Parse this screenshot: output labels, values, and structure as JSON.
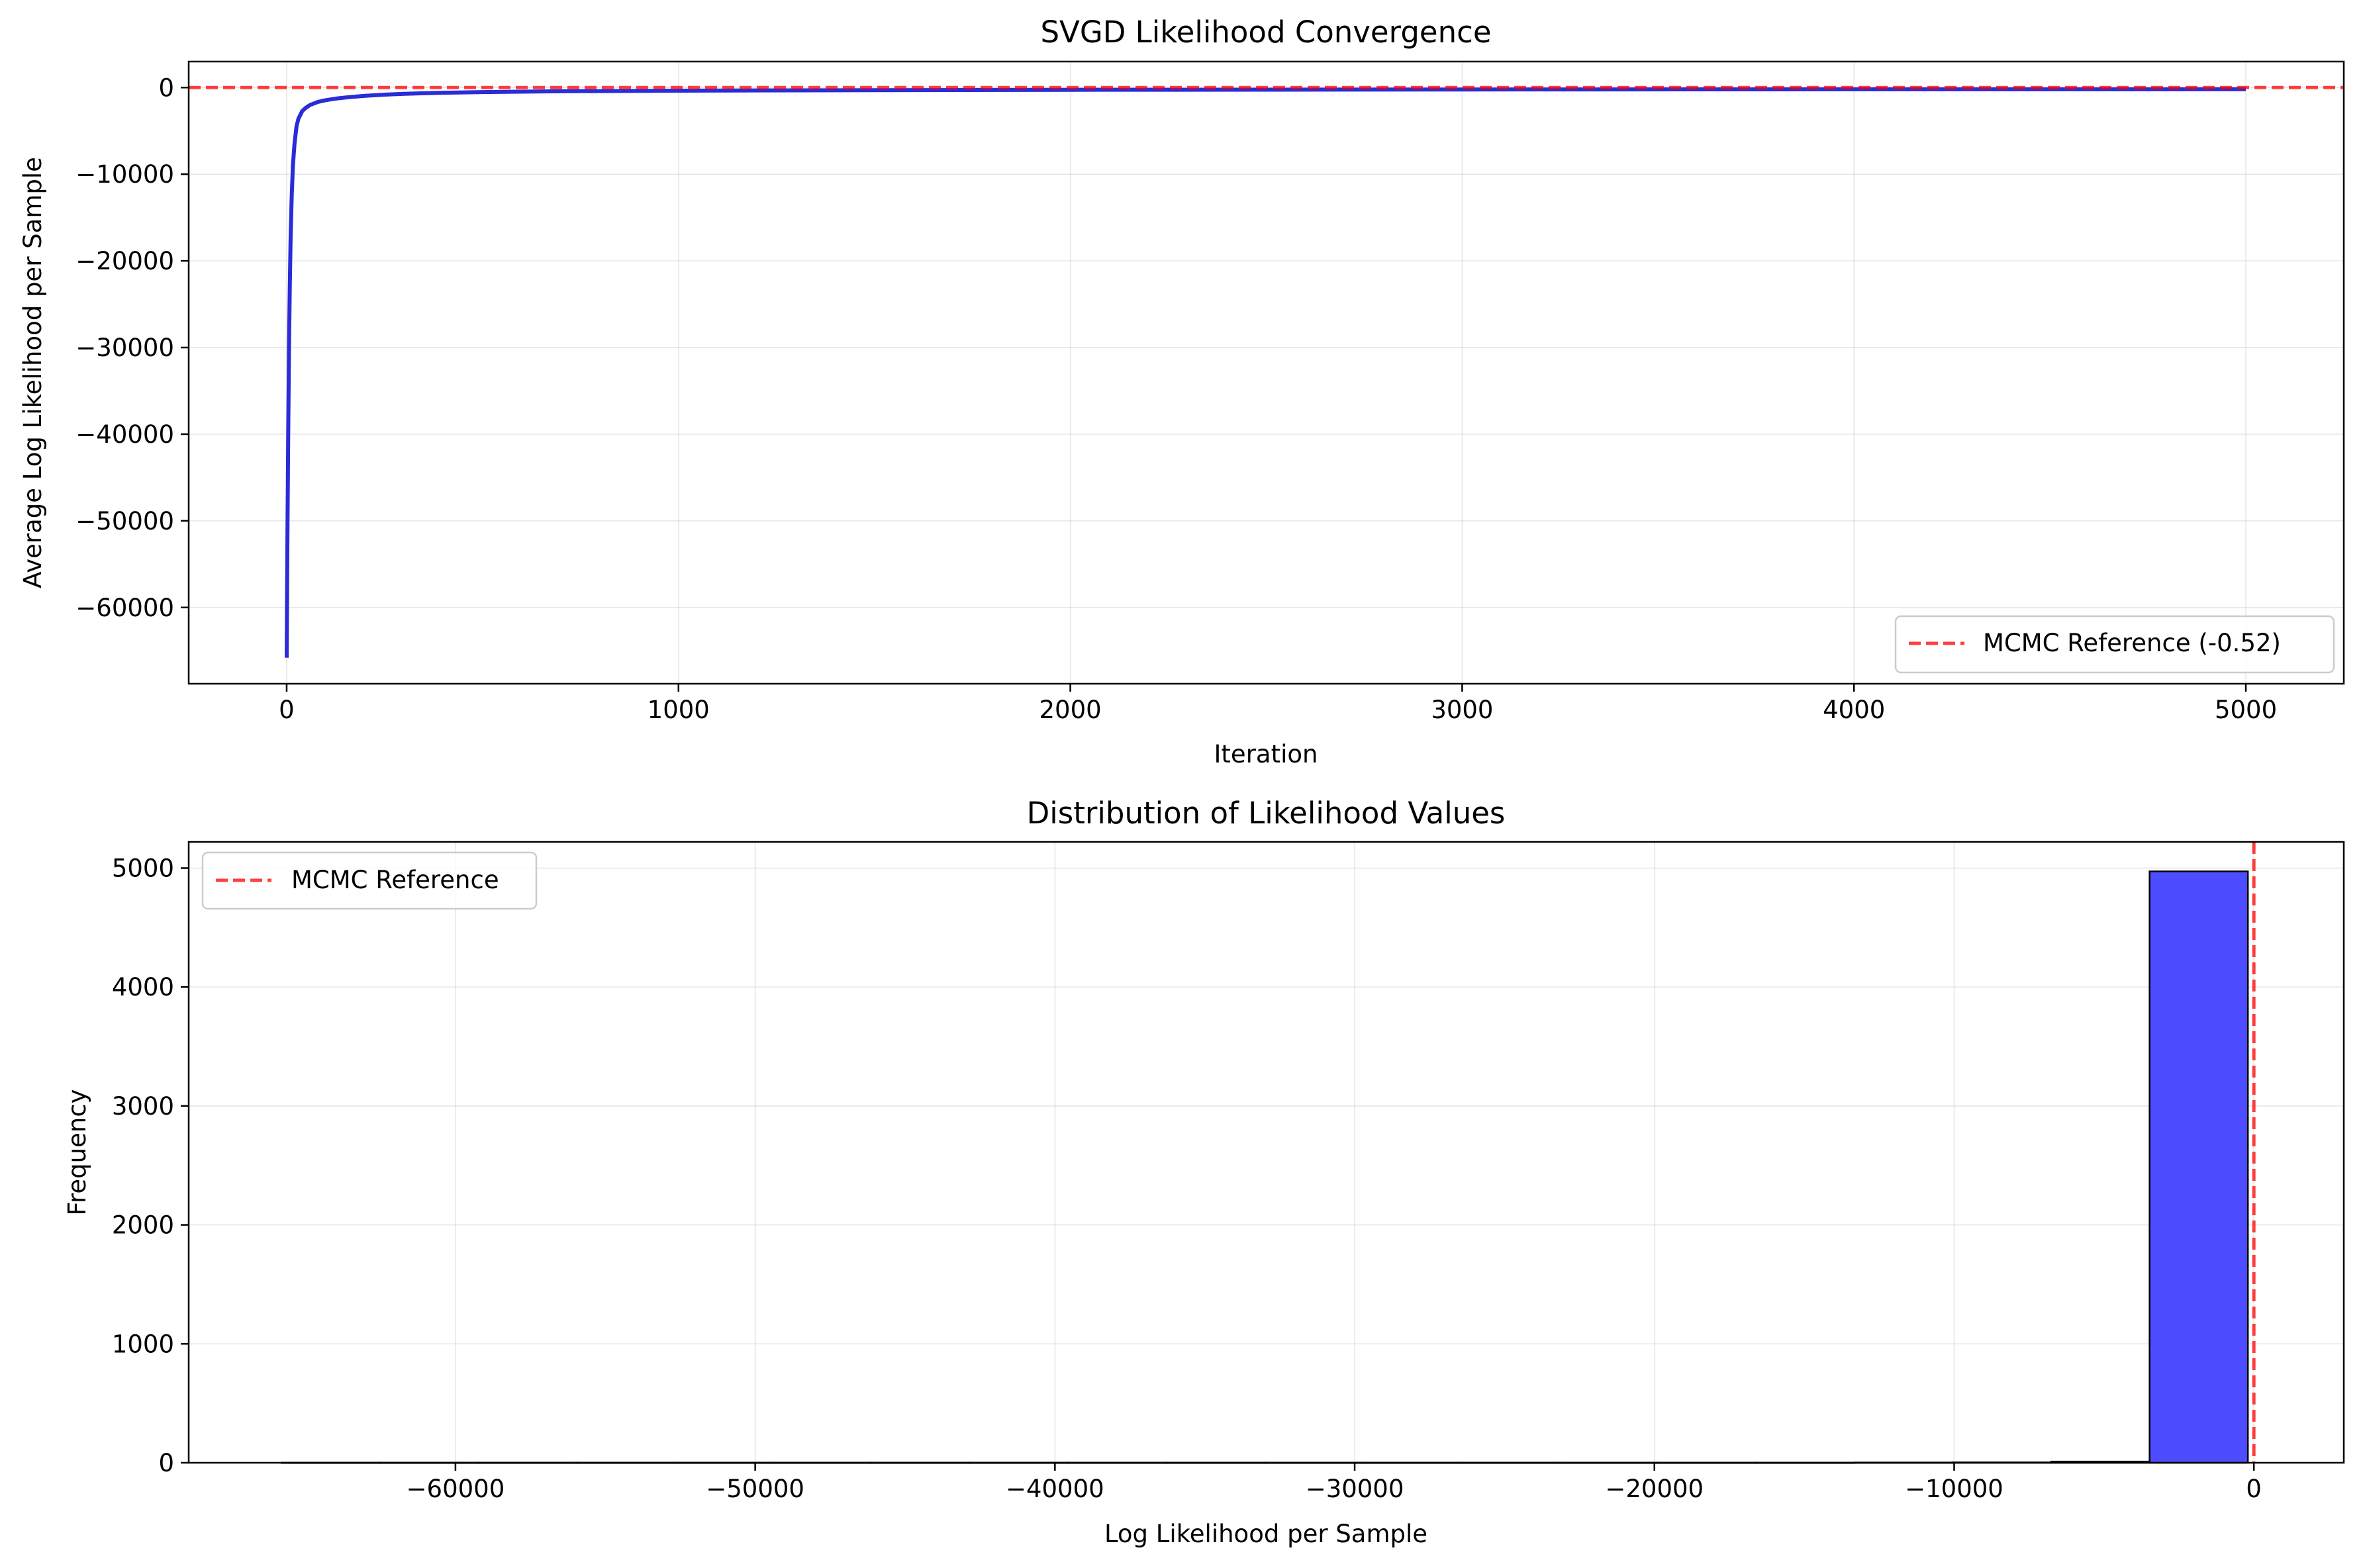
{
  "chart_data": [
    {
      "type": "line",
      "title": "SVGD Likelihood Convergence",
      "xlabel": "Iteration",
      "ylabel": "Average Log Likelihood per Sample",
      "xlim": [
        -250,
        5250
      ],
      "ylim": [
        -68800,
        3000
      ],
      "xticks": [
        0,
        1000,
        2000,
        3000,
        4000,
        5000
      ],
      "xtick_labels": [
        "0",
        "1000",
        "2000",
        "3000",
        "4000",
        "5000"
      ],
      "yticks": [
        0,
        -10000,
        -20000,
        -30000,
        -40000,
        -50000,
        -60000
      ],
      "ytick_labels": [
        "0",
        "−10000",
        "−20000",
        "−30000",
        "−40000",
        "−50000",
        "−60000"
      ],
      "grid": true,
      "legend_position": "lower right",
      "series": [
        {
          "name": "",
          "color": "#2b2bd9",
          "x": [
            0,
            2,
            4,
            6,
            8,
            10,
            13,
            16,
            20,
            25,
            30,
            40,
            50,
            60,
            80,
            100,
            130,
            160,
            200,
            250,
            300,
            400,
            500,
            700,
            1000,
            1500,
            2000,
            3000,
            4000,
            5000
          ],
          "y": [
            -65800,
            -52000,
            -40000,
            -30000,
            -23000,
            -17500,
            -12500,
            -9000,
            -6500,
            -4500,
            -3600,
            -2700,
            -2300,
            -2000,
            -1650,
            -1450,
            -1250,
            -1100,
            -950,
            -820,
            -720,
            -600,
            -520,
            -430,
            -360,
            -300,
            -260,
            -220,
            -200,
            -190
          ]
        }
      ],
      "reference_lines": [
        {
          "orientation": "horizontal",
          "value": -0.52,
          "label": "MCMC Reference (-0.52)",
          "color": "#ff0000",
          "style": "dashed"
        }
      ]
    },
    {
      "type": "bar",
      "title": "Distribution of Likelihood Values",
      "xlabel": "Log Likelihood per Sample",
      "ylabel": "Frequency",
      "xlim": [
        -68900,
        3000
      ],
      "ylim": [
        0,
        5220
      ],
      "xticks": [
        -60000,
        -50000,
        -40000,
        -30000,
        -20000,
        -10000,
        0
      ],
      "xtick_labels": [
        "−60000",
        "−50000",
        "−40000",
        "−30000",
        "−20000",
        "−10000",
        "0"
      ],
      "yticks": [
        0,
        1000,
        2000,
        3000,
        4000,
        5000
      ],
      "ytick_labels": [
        "0",
        "1000",
        "2000",
        "3000",
        "4000",
        "5000"
      ],
      "grid": true,
      "legend_position": "upper left",
      "bin_edges": [
        -65800,
        -62520,
        -59240,
        -55960,
        -52680,
        -49400,
        -46120,
        -42840,
        -39560,
        -36280,
        -33000,
        -29720,
        -26440,
        -23160,
        -19880,
        -16600,
        -13320,
        -10040,
        -6760,
        -3480,
        -200
      ],
      "counts": [
        1,
        1,
        1,
        1,
        1,
        1,
        1,
        1,
        1,
        1,
        1,
        1,
        1,
        1,
        1,
        1,
        2,
        3,
        10,
        4972
      ],
      "bar_color": "#4d4dff",
      "edge_color": "#000000",
      "reference_lines": [
        {
          "orientation": "vertical",
          "value": -0.52,
          "label": "MCMC Reference",
          "color": "#ff0000",
          "style": "dashed"
        }
      ]
    }
  ]
}
